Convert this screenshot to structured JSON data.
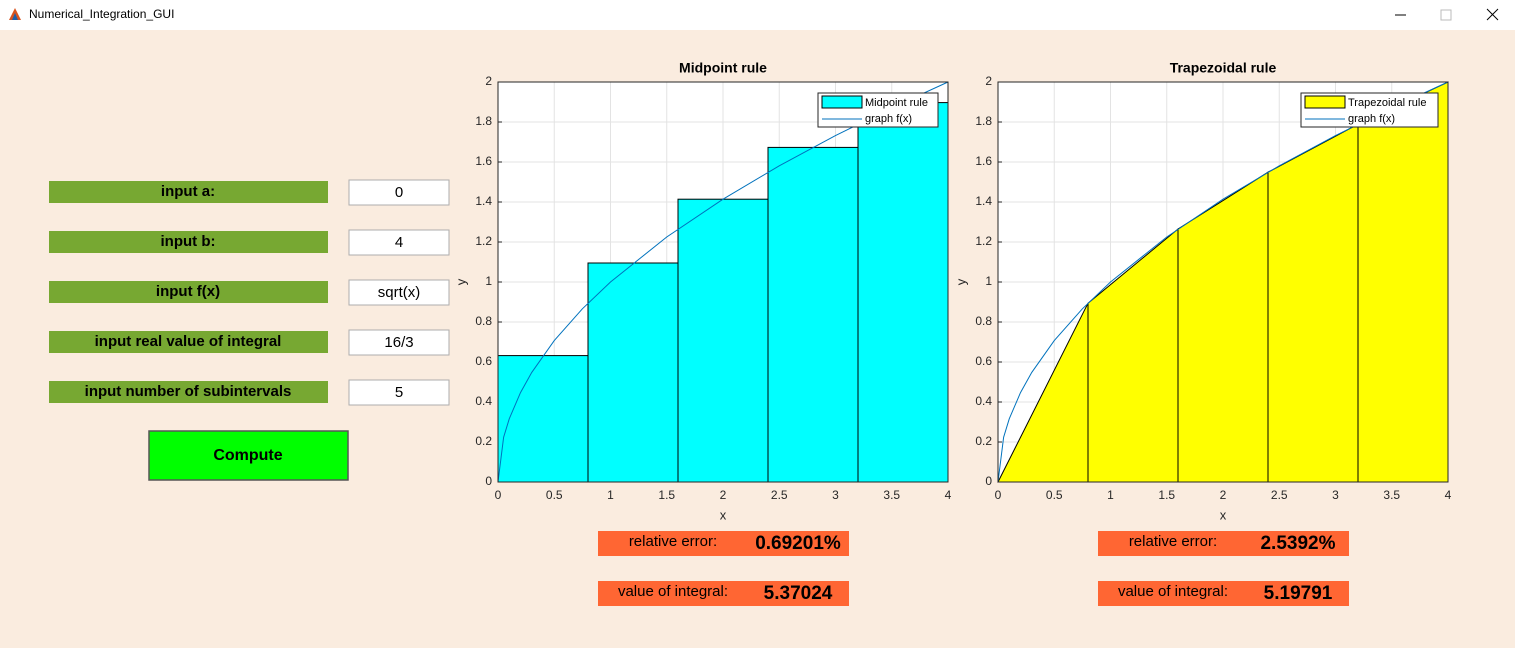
{
  "window": {
    "title": "Numerical_Integration_GUI"
  },
  "form": {
    "fields": [
      {
        "label": "input a:",
        "value": "0"
      },
      {
        "label": "input b:",
        "value": "4"
      },
      {
        "label": "input f(x)",
        "value": "sqrt(x)"
      },
      {
        "label": "input real value of integral",
        "value": "16/3"
      },
      {
        "label": "input number of subintervals",
        "value": "5"
      }
    ],
    "button": "Compute"
  },
  "chart_data": [
    {
      "type": "histogram",
      "title": "Midpoint rule",
      "xlabel": "x",
      "ylabel": "y",
      "name": "Midpoint rule",
      "color": "#00ffff",
      "bins": [
        0,
        0.8,
        1.6,
        2.4,
        3.2,
        4
      ],
      "values": [
        0.632,
        1.095,
        1.414,
        1.673,
        1.897
      ],
      "curve": {
        "name": "graph f(x)",
        "color": "#0072bd",
        "x": [
          0,
          0.05,
          0.1,
          0.2,
          0.3,
          0.5,
          0.75,
          1,
          1.5,
          2,
          2.5,
          3,
          3.5,
          4
        ],
        "y": [
          0,
          0.224,
          0.316,
          0.447,
          0.548,
          0.707,
          0.866,
          1,
          1.225,
          1.414,
          1.581,
          1.732,
          1.871,
          2
        ]
      },
      "xlim": [
        0,
        4
      ],
      "ylim": [
        0,
        2
      ],
      "xticks": [
        0,
        0.5,
        1,
        1.5,
        2,
        2.5,
        3,
        3.5,
        4
      ],
      "yticks": [
        0,
        0.2,
        0.4,
        0.6,
        0.8,
        1,
        1.2,
        1.4,
        1.6,
        1.8,
        2
      ],
      "grid": true,
      "legend": "upper right"
    },
    {
      "type": "area",
      "title": "Trapezoidal rule",
      "xlabel": "x",
      "ylabel": "y",
      "name": "Trapezoidal rule",
      "color": "#ffff00",
      "x": [
        0,
        0.8,
        1.6,
        2.4,
        3.2,
        4
      ],
      "values": [
        0,
        0.894,
        1.265,
        1.549,
        1.789,
        2
      ],
      "curve": {
        "name": "graph f(x)",
        "color": "#0072bd",
        "x": [
          0,
          0.05,
          0.1,
          0.2,
          0.3,
          0.5,
          0.75,
          1,
          1.5,
          2,
          2.5,
          3,
          3.5,
          4
        ],
        "y": [
          0,
          0.224,
          0.316,
          0.447,
          0.548,
          0.707,
          0.866,
          1,
          1.225,
          1.414,
          1.581,
          1.732,
          1.871,
          2
        ]
      },
      "xlim": [
        0,
        4
      ],
      "ylim": [
        0,
        2
      ],
      "xticks": [
        0,
        0.5,
        1,
        1.5,
        2,
        2.5,
        3,
        3.5,
        4
      ],
      "yticks": [
        0,
        0.2,
        0.4,
        0.6,
        0.8,
        1,
        1.2,
        1.4,
        1.6,
        1.8,
        2
      ],
      "grid": true,
      "legend": "upper right"
    }
  ],
  "results": [
    {
      "error_label": "relative error:",
      "error": "0.69201%",
      "integral_label": "value of integral:",
      "integral": "5.37024"
    },
    {
      "error_label": "relative error:",
      "error": "2.5392%",
      "integral_label": "value of integral:",
      "integral": "5.19791"
    }
  ]
}
